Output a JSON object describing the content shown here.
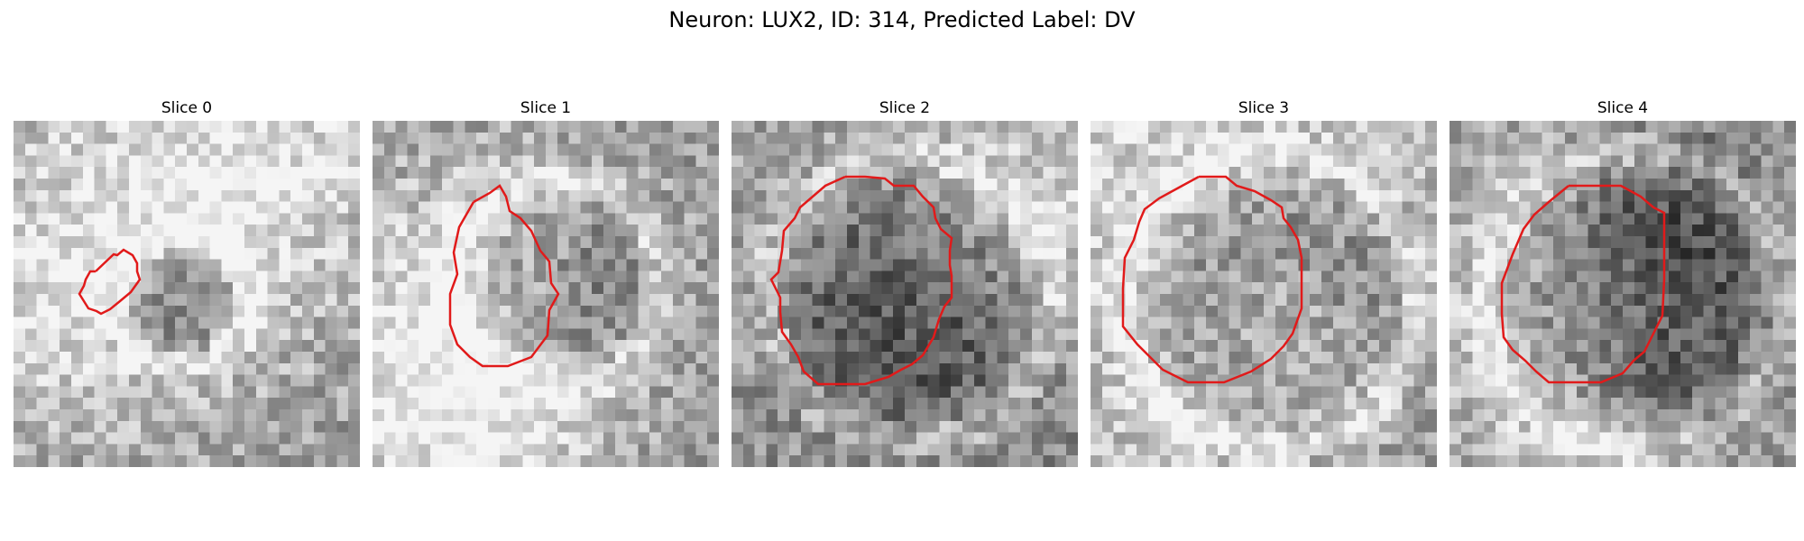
{
  "figure": {
    "title": "Neuron: LUX2, ID: 314, Predicted Label: DV",
    "outline_color": "#e11a1a",
    "panels": [
      {
        "title": "Slice 0",
        "blob_radius": 0.16,
        "contour_radius": 0.12,
        "center": [
          0.47,
          0.5
        ],
        "bg_variant": 0
      },
      {
        "title": "Slice 1",
        "blob_radius": 0.27,
        "contour_radius": 0.25,
        "center": [
          0.52,
          0.45
        ],
        "bg_variant": 1
      },
      {
        "title": "Slice 2",
        "blob_radius": 0.38,
        "contour_radius": 0.36,
        "center": [
          0.5,
          0.5
        ],
        "bg_variant": 2
      },
      {
        "title": "Slice 3",
        "blob_radius": 0.4,
        "contour_radius": 0.37,
        "center": [
          0.5,
          0.5
        ],
        "bg_variant": 3
      },
      {
        "title": "Slice 4",
        "blob_radius": 0.4,
        "contour_radius": 0.36,
        "center": [
          0.52,
          0.5
        ],
        "bg_variant": 4
      }
    ]
  }
}
